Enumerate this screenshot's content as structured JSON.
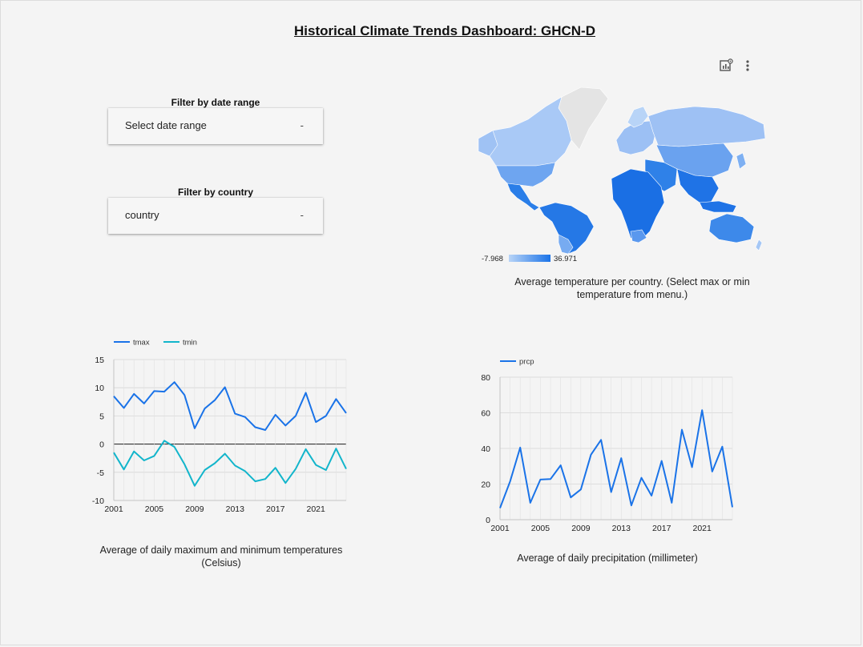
{
  "dashboard": {
    "title": "Historical Climate Trends Dashboard: GHCN-D"
  },
  "filters": {
    "date_label": "Filter by date range",
    "date_placeholder": "Select date range",
    "country_label": "Filter by country",
    "country_placeholder": "country",
    "caret": "-"
  },
  "toolbar": {
    "icons": [
      "chart-settings-icon",
      "more-vert-icon"
    ]
  },
  "map": {
    "legend_min": "-7.968",
    "legend_max": "36.971",
    "caption": "Average temperature per country. (Select max or min temperature from menu.)",
    "colors": {
      "low": "#b8d4f7",
      "high": "#1a73e8",
      "nodata": "#e4e4e4"
    }
  },
  "temp_chart": {
    "caption": "Average of daily maximum and minimum temperatures (Celsius)"
  },
  "precip_chart": {
    "caption": "Average of daily precipitation (millimeter)"
  },
  "chart_data": [
    {
      "type": "line",
      "x": [
        2001,
        2002,
        2003,
        2004,
        2005,
        2006,
        2007,
        2008,
        2009,
        2010,
        2011,
        2012,
        2013,
        2014,
        2015,
        2016,
        2017,
        2018,
        2019,
        2020,
        2021,
        2022,
        2023,
        2024
      ],
      "series": [
        {
          "name": "tmax",
          "color": "#1a73e8",
          "values": [
            8.5,
            6.4,
            8.9,
            7.2,
            9.4,
            9.3,
            11.0,
            8.7,
            2.8,
            6.3,
            7.8,
            10.1,
            5.4,
            4.8,
            3.0,
            2.5,
            5.2,
            3.3,
            5.0,
            9.1,
            3.9,
            5.0,
            8.0,
            5.5
          ]
        },
        {
          "name": "tmin",
          "color": "#12b5cb",
          "values": [
            -1.5,
            -4.5,
            -1.3,
            -2.9,
            -2.1,
            0.6,
            -0.5,
            -3.6,
            -7.4,
            -4.6,
            -3.4,
            -1.7,
            -3.8,
            -4.8,
            -6.6,
            -6.2,
            -4.2,
            -6.9,
            -4.4,
            -0.9,
            -3.7,
            -4.6,
            -0.8,
            -4.4
          ]
        }
      ],
      "xticks": [
        "2001",
        "2005",
        "2009",
        "2013",
        "2017",
        "2021"
      ],
      "yticks": [
        "15",
        "10",
        "5",
        "0",
        "-5",
        "-10"
      ],
      "ylim": [
        -10,
        15
      ],
      "xlabel": "",
      "ylabel": "",
      "grid": true,
      "legend": "top-left"
    },
    {
      "type": "line",
      "x": [
        2001,
        2002,
        2003,
        2004,
        2005,
        2006,
        2007,
        2008,
        2009,
        2010,
        2011,
        2012,
        2013,
        2014,
        2015,
        2016,
        2017,
        2018,
        2019,
        2020,
        2021,
        2022,
        2023,
        2024
      ],
      "series": [
        {
          "name": "prcp",
          "color": "#1a73e8",
          "values": [
            6.5,
            21.5,
            40.5,
            9.5,
            22.5,
            22.8,
            30.5,
            12.5,
            17.0,
            36.5,
            44.8,
            15.5,
            34.5,
            8.0,
            23.5,
            13.5,
            33.0,
            9.5,
            50.5,
            29.5,
            61.5,
            27.0,
            41.0,
            7.0
          ]
        }
      ],
      "xticks": [
        "2001",
        "2005",
        "2009",
        "2013",
        "2017",
        "2021"
      ],
      "yticks": [
        "80",
        "60",
        "40",
        "20",
        "0"
      ],
      "ylim": [
        0,
        80
      ],
      "xlabel": "",
      "ylabel": "",
      "grid": true,
      "legend": "top-left"
    }
  ]
}
